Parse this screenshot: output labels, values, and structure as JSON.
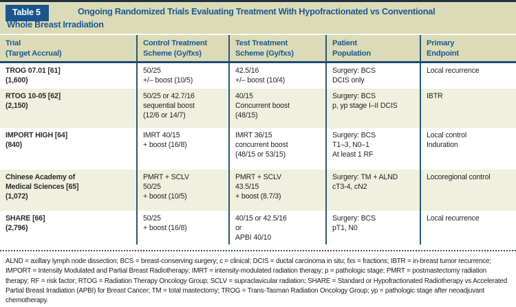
{
  "table": {
    "label": "Table 5",
    "title": "Ongoing Randomized Trials Evaluating Treatment With Hypofractionated vs Conventional\nWhole Breast Irradiation",
    "columns": {
      "trial": "Trial\n(Target Accrual)",
      "control": "Control Treatment\nScheme (Gy/fxs)",
      "test": "Test Treatment\nScheme (Gy/fxs)",
      "population": "Patient\nPopulation",
      "endpoint": "Primary\nEndpoint"
    },
    "rows": [
      {
        "trial": "TROG 07.01 [61]\n(1,600)",
        "control": "50/25\n+/– boost (10/5)",
        "test": "42.5/16\n+/– boost (10/4)",
        "population": "Surgery: BCS\nDCIS only",
        "endpoint": "Local recurrence"
      },
      {
        "trial": "RTOG 10-05 [62]\n(2,150)",
        "control": "50/25 or 42.7/16\nsequential boost\n(12/6 or 14/7)",
        "test": "40/15\nConcurrent boost\n(48/15)",
        "population": "Surgery: BCS\np, yp stage I–II DCIS",
        "endpoint": "IBTR"
      },
      {
        "trial": "IMPORT HIGH [64]\n(840)",
        "control": "IMRT 40/15\n+ boost (16/8)",
        "test": "IMRT 36/15\nconcurrent boost\n(48/15 or 53/15)",
        "population": "Surgery: BCS\nT1–3, N0–1\nAt least 1 RF",
        "endpoint": "Local control\nInduration"
      },
      {
        "trial": "Chinese Academy of\nMedical Sciences [65]\n(1,072)",
        "control": "PMRT + SCLV\n50/25\n+ boost (10/5)",
        "test": "PMRT + SCLV\n43.5/15\n+ boost (8.7/3)",
        "population": "Surgery: TM + ALND\ncT3-4, cN2",
        "endpoint": "Locoregional control"
      },
      {
        "trial": "SHARE [66]\n(2,796)",
        "control": "50/25\n+ boost (16/8)",
        "test": "40/15 or 42.5/16\nor\nAPBI 40/10",
        "population": "Surgery: BCS\npT1, N0",
        "endpoint": "Local recurrence"
      }
    ],
    "footnote": "ALND = axillary lymph node dissection; BCS = breast-conserving surgery; c = clinical; DCIS = ductal carcinoma in situ; fxs = fractions; IBTR = in-breast tumor recurrence; IMPORT = Intensity Modulated and Partial Breast Radiotherapy; IMRT = intensity-modulated radiation therapy; p = pathologic stage; PMRT = postmastectomy radiation therapy; RF = risk factor; RTOG = Radiation Therapy Oncology Group; SCLV = supraclavicular radiation; SHARE = Standard or Hypofractionated Radiotherapy vs Accelerated Partial Breast Irradiation (APBI) for Breast Cancer; TM = total mastectomy; TROG = Trans-Tasman Radiation Oncology Group; yp = pathologic stage after neoadjuvant chemotherapy."
  },
  "colors": {
    "band_background": "#dcdbb8",
    "tint_row_background": "#eff0dd",
    "heading_blue": "#1a5a8e",
    "label_box_blue": "#1a568c",
    "header_rule_blue": "#1d4b72",
    "column_line_blue": "#2a5673",
    "top_rule_navy": "#20303e",
    "body_text": "#231f20"
  }
}
